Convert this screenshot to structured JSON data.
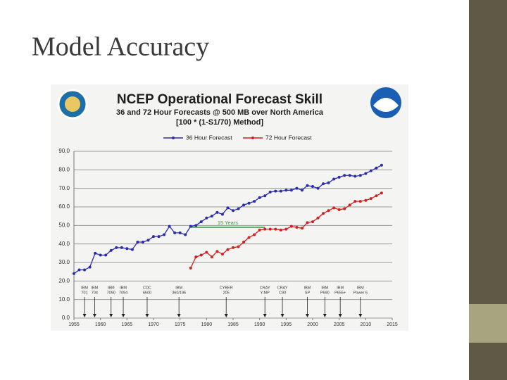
{
  "slide_title": "Model Accuracy",
  "chart_data": {
    "type": "line",
    "title": "NCEP Operational Forecast Skill",
    "subtitle": "36 and 72 Hour Forecasts @ 500 MB over North America",
    "subtitle2": "[100 * (1-S1/70) Method]",
    "x": [
      1955,
      1956,
      1957,
      1958,
      1959,
      1960,
      1961,
      1962,
      1963,
      1964,
      1965,
      1966,
      1967,
      1968,
      1969,
      1970,
      1971,
      1972,
      1973,
      1974,
      1975,
      1976,
      1977,
      1978,
      1979,
      1980,
      1981,
      1982,
      1983,
      1984,
      1985,
      1986,
      1987,
      1988,
      1989,
      1990,
      1991,
      1992,
      1993,
      1994,
      1995,
      1996,
      1997,
      1998,
      1999,
      2000,
      2001,
      2002,
      2003,
      2004,
      2005,
      2006,
      2007,
      2008,
      2009,
      2010,
      2011,
      2012,
      2013
    ],
    "series": [
      {
        "name": "36 Hour Forecast",
        "color": "#2b2bb0",
        "values": [
          24,
          26,
          26,
          27.5,
          35,
          34,
          34,
          36.5,
          38,
          38,
          37.5,
          37,
          41,
          41,
          42,
          44,
          44,
          45,
          49.5,
          46,
          46,
          45,
          49.5,
          50,
          52,
          54,
          55,
          57,
          56,
          59.5,
          58,
          59,
          61,
          62,
          63,
          65,
          66,
          68,
          68.5,
          68.5,
          69,
          69,
          70,
          69,
          71.5,
          71,
          70,
          72.5,
          73,
          75,
          76,
          77,
          77,
          76.5,
          77,
          78,
          79.5,
          81,
          82.5
        ]
      },
      {
        "name": "72 Hour Forecast",
        "color": "#d42020",
        "values": [
          null,
          null,
          null,
          null,
          null,
          null,
          null,
          null,
          null,
          null,
          null,
          null,
          null,
          null,
          null,
          null,
          null,
          null,
          null,
          null,
          null,
          null,
          27,
          33,
          34,
          35.5,
          33,
          36,
          34.5,
          37,
          38,
          38.5,
          41,
          43.5,
          45,
          47.5,
          48,
          48,
          48,
          47.5,
          48,
          49.5,
          49,
          48.5,
          51.5,
          52,
          54,
          56.5,
          58,
          59.5,
          58.5,
          59,
          61,
          63,
          63,
          63.5,
          64.5,
          66,
          67.5
        ]
      }
    ],
    "xlim": [
      1955,
      2015
    ],
    "xticks": [
      1955,
      1960,
      1965,
      1970,
      1975,
      1980,
      1985,
      1990,
      1995,
      2000,
      2005,
      2010,
      2015
    ],
    "ylim": [
      0,
      90
    ],
    "yticks": [
      {
        "value": 0,
        "label": "0.0"
      },
      {
        "value": 10,
        "label": "10.0"
      },
      {
        "value": 20,
        "label": "20.0"
      },
      {
        "value": 30,
        "label": "30.0"
      },
      {
        "value": 40,
        "label": "40.0"
      },
      {
        "value": 50,
        "label": "50.0"
      },
      {
        "value": 60,
        "label": "60.0"
      },
      {
        "value": 70,
        "label": "70.0"
      },
      {
        "value": 80,
        "label": "80.0"
      },
      {
        "value": 90,
        "label": "90.0"
      }
    ],
    "grid": true,
    "legend": "top",
    "span_annotation": {
      "text": "15 Years",
      "x": [
        1977,
        1991
      ],
      "y": 49,
      "color": "#3a9a3a"
    },
    "computers": [
      {
        "lines": [
          "IBM",
          "701"
        ],
        "x": 1957
      },
      {
        "lines": [
          "IBM",
          "704"
        ],
        "x": 1958.9
      },
      {
        "lines": [
          "IBM",
          "7090"
        ],
        "x": 1962
      },
      {
        "lines": [
          "IBM",
          "7094"
        ],
        "x": 1964.3
      },
      {
        "lines": [
          "CDC",
          "6600"
        ],
        "x": 1968.8
      },
      {
        "lines": [
          "IBM",
          "360/195"
        ],
        "x": 1974.8
      },
      {
        "lines": [
          "CYBER",
          "205"
        ],
        "x": 1983.7
      },
      {
        "lines": [
          "CRAY",
          "Y-MP"
        ],
        "x": 1991
      },
      {
        "lines": [
          "CRAY",
          "C90"
        ],
        "x": 1994.3
      },
      {
        "lines": [
          "IBM",
          "SP"
        ],
        "x": 1999
      },
      {
        "lines": [
          "IBM",
          "P690"
        ],
        "x": 2002.3
      },
      {
        "lines": [
          "IBM",
          "P655+"
        ],
        "x": 2005.2
      },
      {
        "lines": [
          "IBM",
          "Power 6"
        ],
        "x": 2009
      }
    ]
  }
}
